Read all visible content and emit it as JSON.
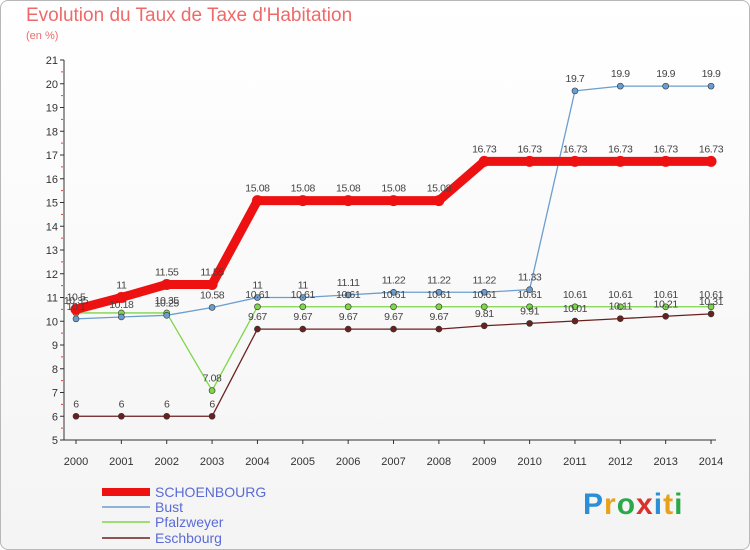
{
  "title": "Evolution du Taux de Taxe d'Habitation",
  "subtitle": "(en %)",
  "logo": {
    "text": "Proxiti",
    "letter_colors": [
      "#2a8fd6",
      "#e8a21a",
      "#2aa84a",
      "#d8322b",
      "#2a8fd6",
      "#e8a21a",
      "#2aa84a"
    ]
  },
  "chart_data": {
    "type": "line",
    "x": [
      2000,
      2001,
      2002,
      2003,
      2004,
      2005,
      2006,
      2007,
      2008,
      2009,
      2010,
      2011,
      2012,
      2013,
      2014
    ],
    "ylim": [
      5,
      21
    ],
    "yticks": [
      5,
      6,
      7,
      8,
      9,
      10,
      11,
      12,
      13,
      14,
      15,
      16,
      17,
      18,
      19,
      20,
      21
    ],
    "grid": false,
    "legend": "bottom-left",
    "series": [
      {
        "name": "SCHOENBOURG",
        "color": "#ee1111",
        "thick": true,
        "values": [
          10.5,
          11,
          11.55,
          11.55,
          15.08,
          15.08,
          15.08,
          15.08,
          15.08,
          16.73,
          16.73,
          16.73,
          16.73,
          16.73,
          16.73
        ],
        "labels": [
          "10.5",
          "11",
          "11.55",
          "11.55",
          "15.08",
          "15.08",
          "15.08",
          "15.08",
          "15.08",
          "16.73",
          "16.73",
          "16.73",
          "16.73",
          "16.73",
          "16.73"
        ]
      },
      {
        "name": "Bust",
        "color": "#6a9ed0",
        "values": [
          10.1,
          10.18,
          10.25,
          10.58,
          11,
          11,
          11.11,
          11.22,
          11.22,
          11.22,
          11.33,
          19.7,
          19.9,
          19.9,
          19.9
        ],
        "labels": [
          "10.1",
          "10.18",
          "10.25",
          "10.58",
          "11",
          "11",
          "11.11",
          "11.22",
          "11.22",
          "11.22",
          "11.33",
          "19.7",
          "19.9",
          "19.9",
          "19.9"
        ]
      },
      {
        "name": "Pfalzweyer",
        "color": "#7ed64a",
        "values": [
          10.35,
          10.35,
          10.35,
          7.08,
          10.61,
          10.61,
          10.61,
          10.61,
          10.61,
          10.61,
          10.61,
          10.61,
          10.61,
          10.61,
          10.61
        ],
        "labels": [
          "10.35",
          "",
          "10.35",
          "7.08",
          "10.61",
          "10.61",
          "10.61",
          "10.61",
          "10.61",
          "10.61",
          "10.61",
          "10.61",
          "10.61",
          "10.61",
          "10.61"
        ]
      },
      {
        "name": "Eschbourg",
        "color": "#6b2020",
        "values": [
          6,
          6,
          6,
          6,
          9.67,
          9.67,
          9.67,
          9.67,
          9.67,
          9.81,
          9.91,
          10.01,
          10.11,
          10.21,
          10.31
        ],
        "labels": [
          "6",
          "6",
          "6",
          "6",
          "9.67",
          "9.67",
          "9.67",
          "9.67",
          "9.67",
          "9.81",
          "9.91",
          "10.01",
          "10.11",
          "10.21",
          "10.31"
        ]
      }
    ]
  }
}
